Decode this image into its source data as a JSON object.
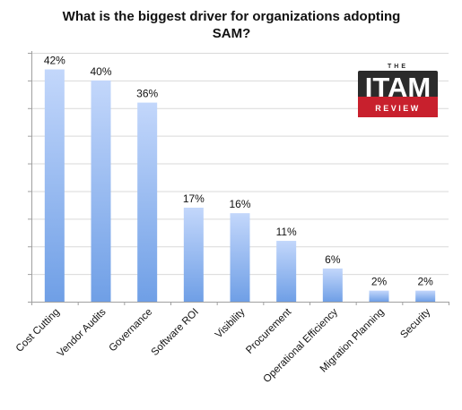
{
  "chart_data": {
    "type": "bar",
    "title_lines": [
      "What is the biggest driver for organizations adopting",
      "SAM?"
    ],
    "categories": [
      "Cost Cutting",
      "Vendor Audits",
      "Governance",
      "Software ROI",
      "Visibility",
      "Procurement",
      "Operational Efficiency",
      "Migration Planning",
      "Security"
    ],
    "values": [
      42,
      40,
      36,
      17,
      16,
      11,
      6,
      2,
      2
    ],
    "value_labels": [
      "42%",
      "40%",
      "36%",
      "17%",
      "16%",
      "11%",
      "6%",
      "2%",
      "2%"
    ],
    "ylim": [
      0,
      45
    ],
    "grid": true,
    "y_tick_labels_visible": false,
    "bar_color_top": "#c3d7fb",
    "bar_color_bottom": "#6f9fe6"
  },
  "logo": {
    "top_text": "THE",
    "main_text": "ITAM",
    "sub_text": "REVIEW",
    "colors": {
      "red": "#c8202d",
      "dark": "#2b2b2b",
      "light": "#ffffff"
    }
  }
}
